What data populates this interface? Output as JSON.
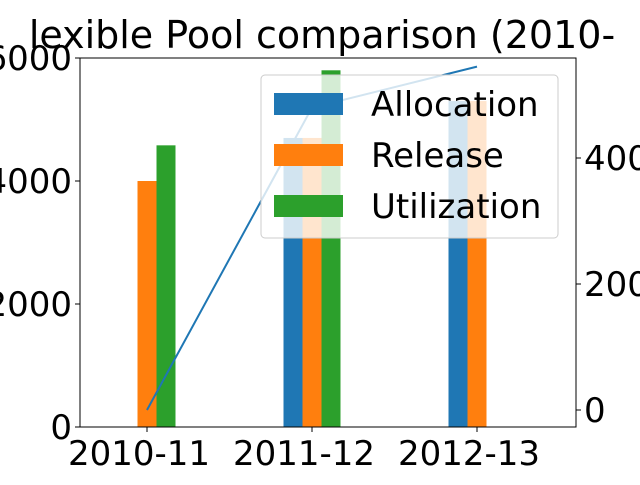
{
  "chart_data": {
    "type": "bar",
    "title": "lexible Pool comparison (2010-",
    "categories": [
      "2010-11",
      "2011-12",
      "2012-13"
    ],
    "series": [
      {
        "name": "Allocation",
        "color": "#1f77b4",
        "values": [
          null,
          4700,
          5300
        ]
      },
      {
        "name": "Release",
        "color": "#ff7f0e",
        "values": [
          4000,
          4700,
          5300
        ]
      },
      {
        "name": "Utilization",
        "color": "#2ca02c",
        "values": [
          4580,
          5800,
          null
        ]
      }
    ],
    "line_series": {
      "color": "#1f77b4",
      "axis": "right",
      "values": [
        0,
        480,
        545
      ]
    },
    "left_axis": {
      "ylim": [
        0,
        6000
      ],
      "ticks": [
        0,
        2000,
        4000,
        6000
      ],
      "tick_labels": [
        "0",
        "2000",
        "4000",
        "6000"
      ]
    },
    "right_axis": {
      "ticks": [
        0,
        200,
        400
      ],
      "tick_labels": [
        "0",
        "200",
        "400"
      ]
    },
    "xlabel": "",
    "ylabel": "",
    "legend": {
      "placement": "top-right",
      "entries": [
        "Allocation",
        "Release",
        "Utilization"
      ]
    },
    "grid": false
  }
}
